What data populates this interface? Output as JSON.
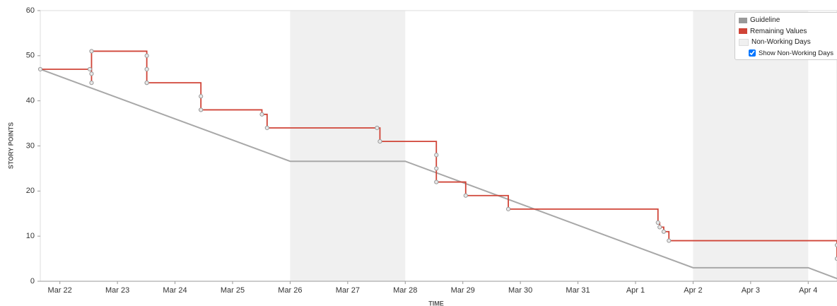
{
  "chart_data": {
    "type": "burndown",
    "ylabel": "STORY POINTS",
    "xlabel": "TIME",
    "xlim": [
      -0.34,
      13.5
    ],
    "ylim": [
      0,
      60
    ],
    "yticks": [
      0,
      10,
      20,
      30,
      40,
      50,
      60
    ],
    "xticks": [
      {
        "value": 0,
        "label": "Mar 22"
      },
      {
        "value": 1,
        "label": "Mar 23"
      },
      {
        "value": 2,
        "label": "Mar 24"
      },
      {
        "value": 3,
        "label": "Mar 25"
      },
      {
        "value": 4,
        "label": "Mar 26"
      },
      {
        "value": 5,
        "label": "Mar 27"
      },
      {
        "value": 6,
        "label": "Mar 28"
      },
      {
        "value": 7,
        "label": "Mar 29"
      },
      {
        "value": 8,
        "label": "Mar 30"
      },
      {
        "value": 9,
        "label": "Mar 31"
      },
      {
        "value": 10,
        "label": "Apr 1"
      },
      {
        "value": 11,
        "label": "Apr 2"
      },
      {
        "value": 12,
        "label": "Apr 3"
      },
      {
        "value": 13,
        "label": "Apr 4"
      }
    ],
    "non_working_days": {
      "name": "Non-Working Days",
      "color": "#f0f0f0",
      "ranges": [
        [
          4,
          6
        ],
        [
          11,
          13
        ]
      ]
    },
    "series": [
      {
        "name": "Guideline",
        "color": "#a8a8a8",
        "legend_color": "#999999",
        "step": false,
        "x": [
          -0.34,
          4,
          6,
          11,
          13,
          13.5
        ],
        "values": [
          47,
          26.6,
          26.6,
          3,
          3,
          0.6
        ]
      },
      {
        "name": "Remaining Values",
        "color": "#d04437",
        "step": true,
        "x": [
          -0.34,
          0.52,
          0.55,
          0.55,
          0.55,
          1.51,
          1.51,
          1.51,
          1.51,
          2.45,
          2.45,
          2.45,
          3.51,
          3.6,
          5.51,
          5.56,
          6.54,
          6.54,
          6.54,
          7.05,
          7.79,
          10.39,
          10.42,
          10.49,
          10.58,
          13.5,
          13.5
        ],
        "values": [
          47,
          47,
          46,
          44,
          51,
          50,
          47,
          44,
          44,
          41,
          38,
          38,
          37,
          34,
          34,
          31,
          28,
          25,
          22,
          19,
          16,
          13,
          12,
          11,
          9,
          8,
          5
        ]
      }
    ],
    "show_non_working_days": {
      "label": "Show Non-Working Days",
      "checked": true
    }
  }
}
